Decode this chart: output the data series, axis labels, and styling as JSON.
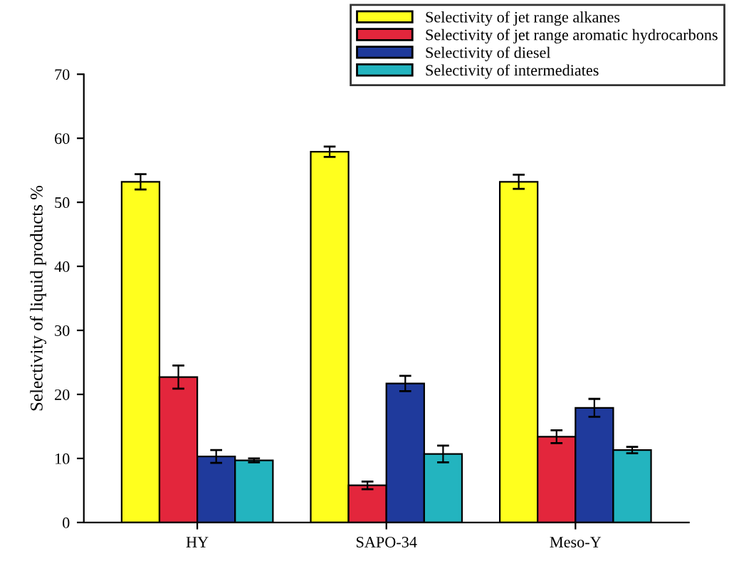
{
  "chart_data": {
    "type": "bar",
    "ylabel": "Selectivity of liquid products %",
    "categories": [
      "HY",
      "SAPO-34",
      "Meso-Y"
    ],
    "series": [
      {
        "name": "Selectivity of jet range alkanes",
        "color": "#ffff1e",
        "values": [
          53.2,
          57.9,
          53.2
        ],
        "errors": [
          1.2,
          0.8,
          1.1
        ]
      },
      {
        "name": "Selectivity of jet range aromatic hydrocarbons",
        "color": "#e3263c",
        "values": [
          22.7,
          5.8,
          13.4
        ],
        "errors": [
          1.8,
          0.6,
          1.0
        ]
      },
      {
        "name": "Selectivity of diesel",
        "color": "#1f3a9c",
        "values": [
          10.3,
          21.7,
          17.9
        ],
        "errors": [
          1.0,
          1.2,
          1.4
        ]
      },
      {
        "name": "Selectivity of intermediates",
        "color": "#23b4bf",
        "values": [
          9.7,
          10.7,
          11.3
        ],
        "errors": [
          0.3,
          1.3,
          0.5
        ]
      }
    ],
    "ylim": [
      0,
      70
    ],
    "yticks": [
      0,
      10,
      20,
      30,
      40,
      50,
      60,
      70
    ],
    "grid": false,
    "legend": "top right"
  }
}
